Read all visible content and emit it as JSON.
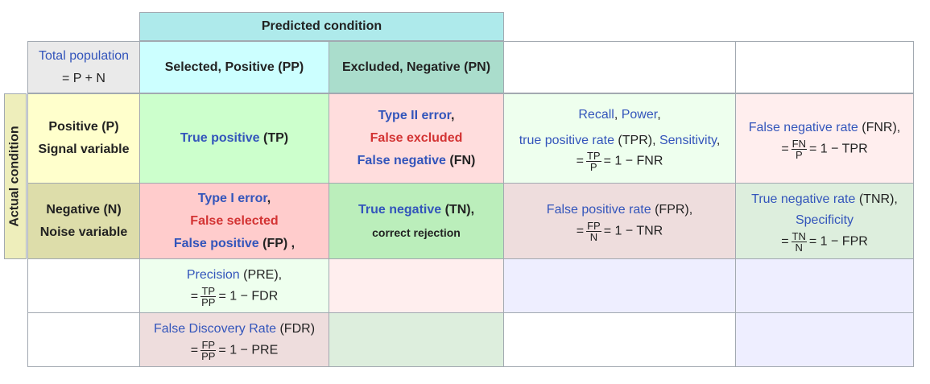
{
  "predicted_condition": "Predicted condition",
  "actual_condition": "Actual condition",
  "total_population": {
    "l1": "Total population",
    "l2": "= P + N"
  },
  "headers": {
    "pp": "Selected, Positive (PP)",
    "pn": "Excluded, Negative (PN)"
  },
  "positive_row": {
    "l1": "Positive (P)",
    "l2": "Signal variable"
  },
  "negative_row": {
    "l1": "Negative (N)",
    "l2": "Noise variable"
  },
  "tp": {
    "a": "True positive",
    "b": " (TP)"
  },
  "fn": {
    "a": "Type II error",
    "b": ",",
    "c": "False excluded",
    "d": "False negative",
    "e": " (FN)"
  },
  "fp": {
    "a": "Type I error",
    "b": ",",
    "c": "False selected",
    "d": "False positive",
    "e": " (FP) ,"
  },
  "tn": {
    "a": "True negative",
    "b": " (TN),",
    "c": "correct rejection"
  },
  "tpr": {
    "a": "Recall",
    "b": ", ",
    "c": "Power",
    "d": ",",
    "e": "true positive rate",
    "f": " (TPR), ",
    "g": "Sensitivity",
    "h": ",",
    "eq": "=",
    "num": "TP",
    "den": "P",
    "rest": "= 1 − FNR"
  },
  "fnr": {
    "a": "False negative rate",
    "b": " (FNR),",
    "eq": "=",
    "num": "FN",
    "den": "P",
    "rest": "= 1 − TPR"
  },
  "fpr": {
    "a": "False positive rate",
    "b": " (FPR),",
    "eq": "=",
    "num": "FP",
    "den": "N",
    "rest": "= 1 − TNR"
  },
  "tnr": {
    "a": "True negative rate",
    "b": " (TNR),",
    "c": "Specificity",
    "eq": "=",
    "num": "TN",
    "den": "N",
    "rest": "= 1 − FPR"
  },
  "pre": {
    "a": "Precision",
    "b": " (PRE),",
    "eq": "=",
    "num": "TP",
    "den": "PP",
    "rest": "= 1 − FDR"
  },
  "fdr": {
    "a": "False Discovery Rate",
    "b": " (FDR)",
    "eq": "=",
    "num": "FP",
    "den": "PP",
    "rest": "= 1 − PRE"
  },
  "colors": {
    "predicted": "#aeeaeb",
    "pp": "#ccffff",
    "pn": "#aaddcc",
    "total": "#eaeaea",
    "pos": "#ffffcc",
    "neg": "#ddddaa",
    "tp": "#ccffcc",
    "fn": "#ffdddd",
    "fp": "#ffcccc",
    "tn": "#bbeebb",
    "tpr": "#eeffee",
    "fnr": "#ffeeee",
    "fpr": "#eedddd",
    "tnr": "#ddeedd",
    "pre": "#eeffee",
    "pink": "#ffeeee",
    "lav": "#eeeeff",
    "fdr": "#eedddd",
    "green": "#ddeedd"
  }
}
